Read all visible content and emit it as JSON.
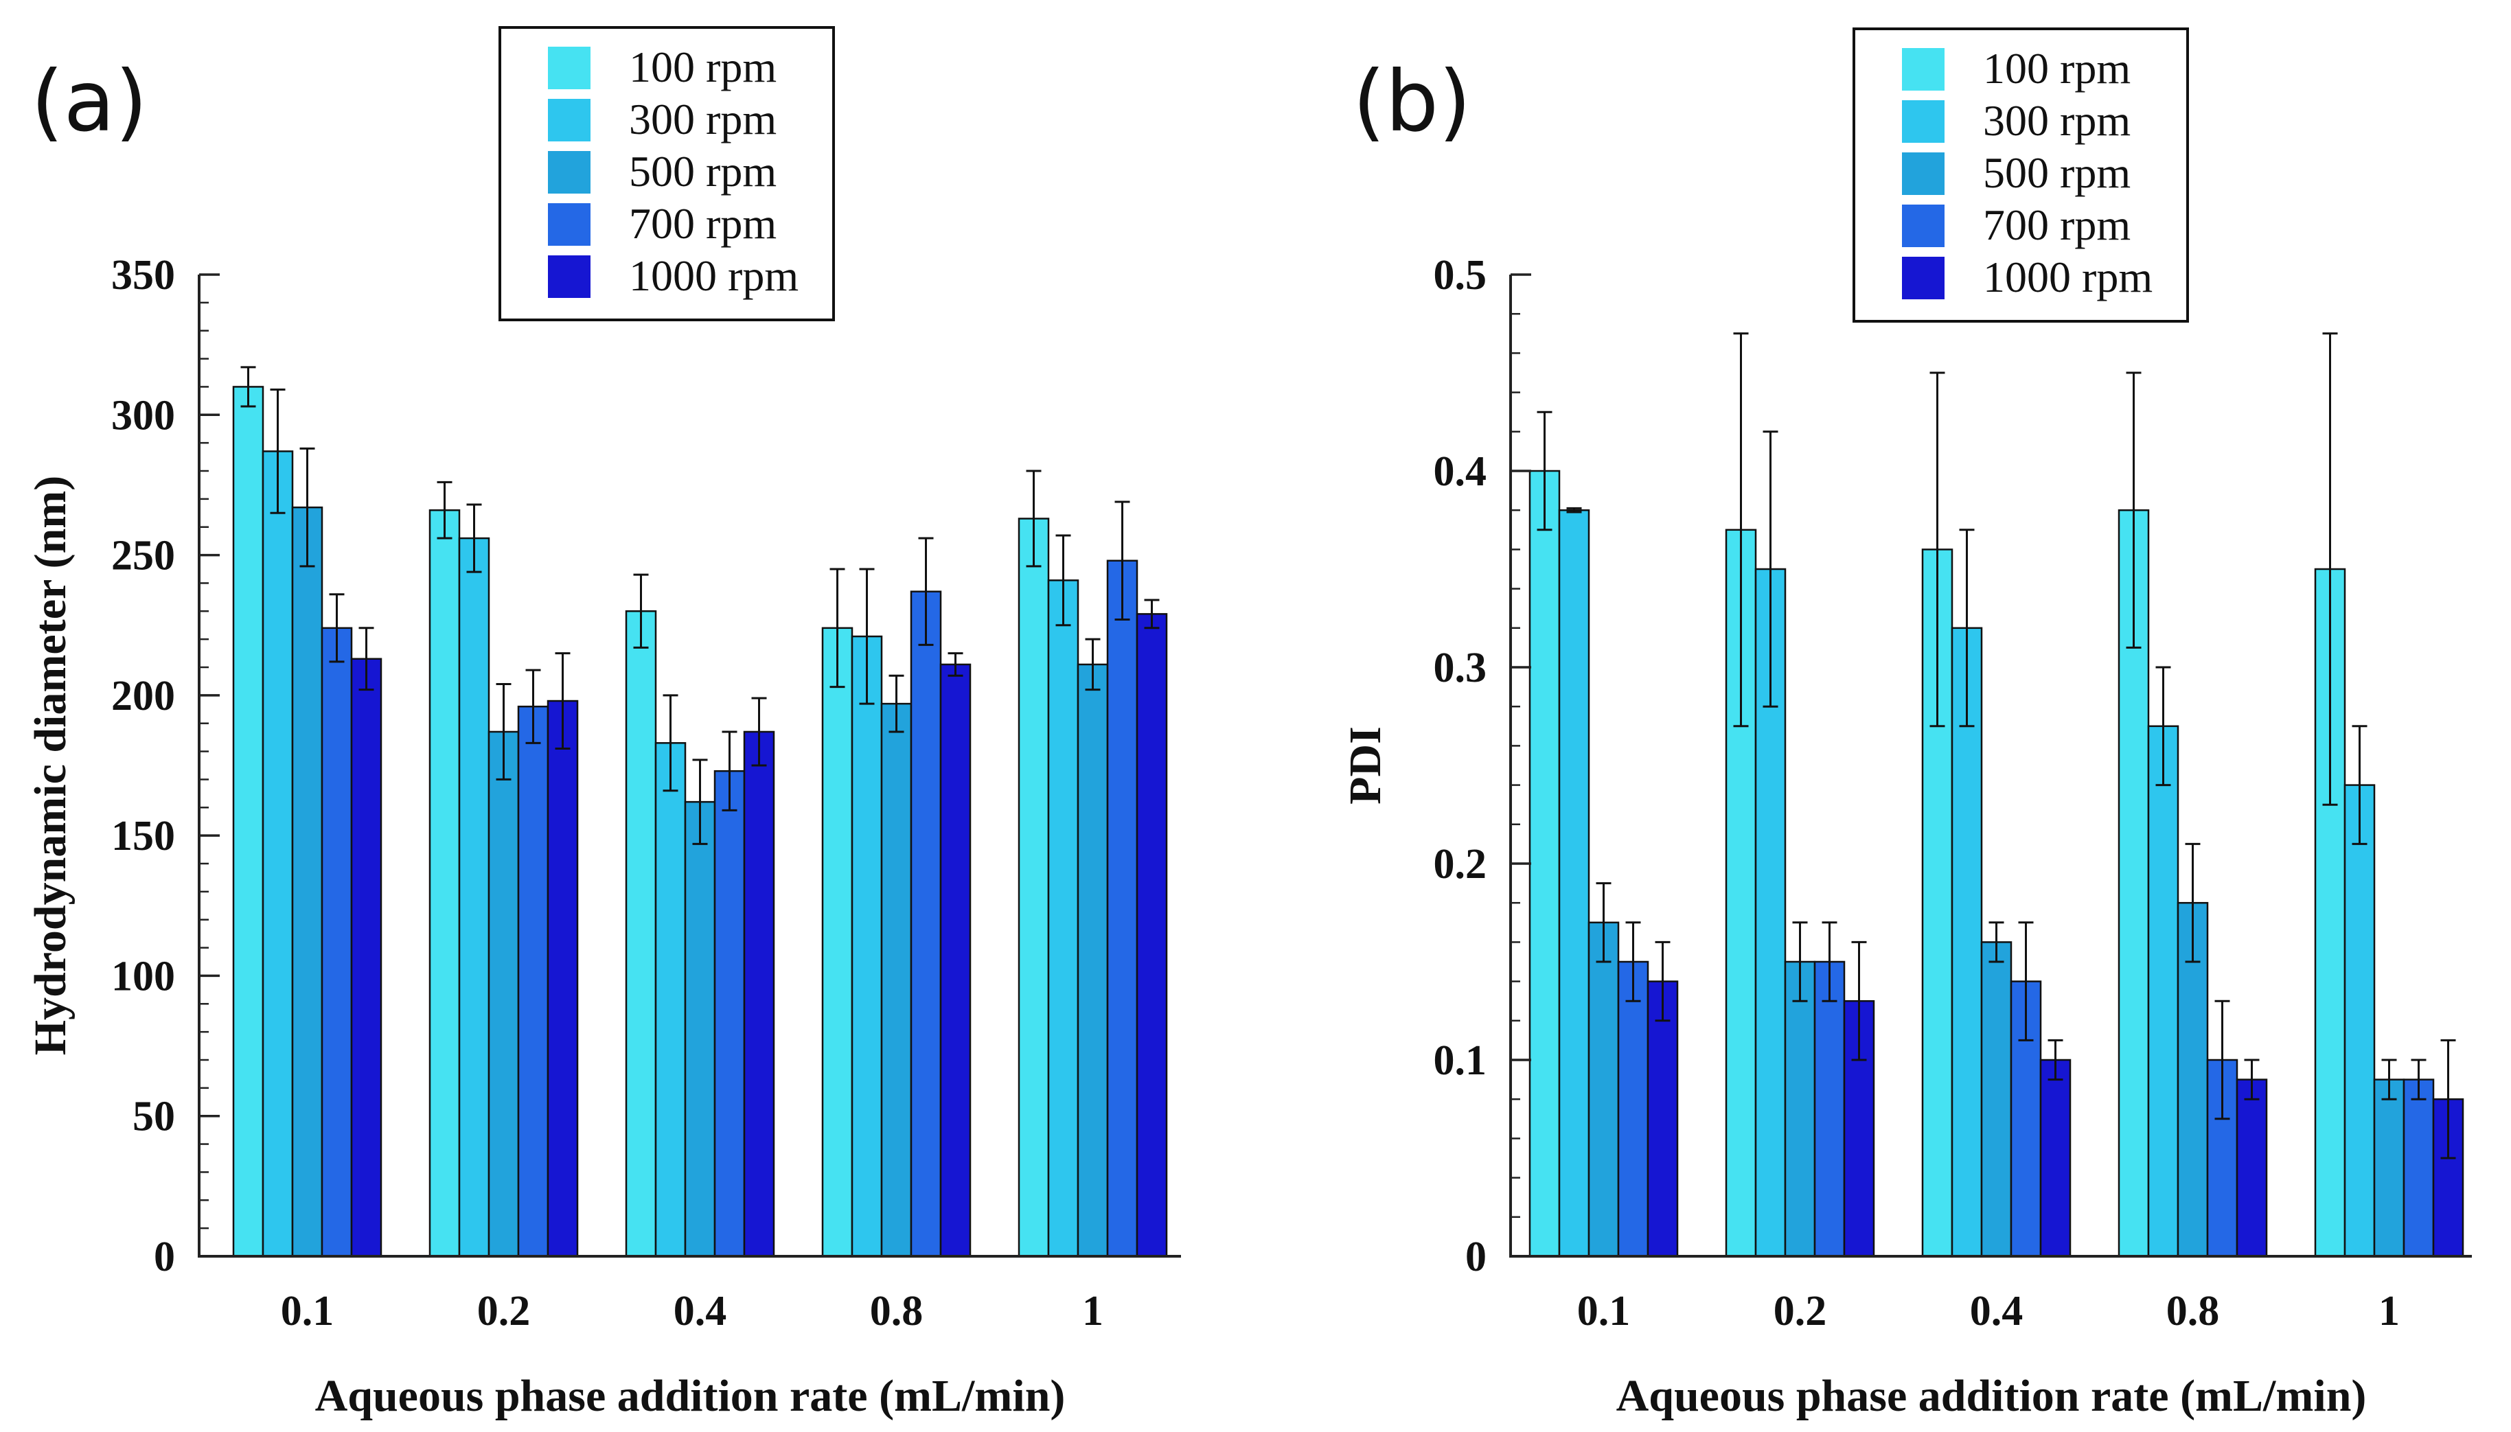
{
  "colors": {
    "series": [
      "#46e2f2",
      "#2ec6ee",
      "#22a3dc",
      "#2468e6",
      "#1616d2"
    ],
    "axis": "#222222",
    "errorbar": "#111111",
    "legend_border": "#111111"
  },
  "chart_data": [
    {
      "type": "bar",
      "panel_label": "(a)",
      "title": "",
      "xlabel": "Aqueous phase addition rate  (mL/min)",
      "ylabel": "Hydrodynamic diameter  (nm)",
      "ylim": [
        0,
        350
      ],
      "yticks": [
        0,
        50,
        100,
        150,
        200,
        250,
        300,
        350
      ],
      "ytick_labels": [
        "0",
        "50",
        "100",
        "150",
        "200",
        "250",
        "300",
        "350"
      ],
      "yminor_step": 10,
      "categories": [
        "0.1",
        "0.2",
        "0.4",
        "0.8",
        "1"
      ],
      "legend_position": "top-center",
      "series": [
        {
          "name": "100 rpm",
          "values": [
            310,
            266,
            230,
            224,
            263
          ],
          "errors": [
            7,
            10,
            13,
            21,
            17
          ]
        },
        {
          "name": "300 rpm",
          "values": [
            287,
            256,
            183,
            221,
            241
          ],
          "errors": [
            22,
            12,
            17,
            24,
            16
          ]
        },
        {
          "name": "500 rpm",
          "values": [
            267,
            187,
            162,
            197,
            211
          ],
          "errors": [
            21,
            17,
            15,
            10,
            9
          ]
        },
        {
          "name": "700 rpm",
          "values": [
            224,
            196,
            173,
            237,
            248
          ],
          "errors": [
            12,
            13,
            14,
            19,
            21
          ]
        },
        {
          "name": "1000 rpm",
          "values": [
            213,
            198,
            187,
            211,
            229
          ],
          "errors": [
            11,
            17,
            12,
            4,
            5
          ]
        }
      ],
      "grid": false
    },
    {
      "type": "bar",
      "panel_label": "(b)",
      "title": "",
      "xlabel": "Aqueous phase addition rate  (mL/min)",
      "ylabel": "PDI",
      "ylim": [
        0,
        0.5
      ],
      "yticks": [
        0,
        0.1,
        0.2,
        0.3,
        0.4,
        0.5
      ],
      "ytick_labels": [
        "0",
        "0.1",
        "0.2",
        "0.3",
        "0.4",
        "0.5"
      ],
      "yminor_step": 0.02,
      "categories": [
        "0.1",
        "0.2",
        "0.4",
        "0.8",
        "1"
      ],
      "legend_position": "top-right",
      "series": [
        {
          "name": "100 rpm",
          "values": [
            0.4,
            0.37,
            0.36,
            0.38,
            0.35
          ],
          "errors": [
            0.03,
            0.1,
            0.09,
            0.07,
            0.12
          ]
        },
        {
          "name": "300 rpm",
          "values": [
            0.38,
            0.35,
            0.32,
            0.27,
            0.24
          ],
          "errors": [
            0.001,
            0.07,
            0.05,
            0.03,
            0.03
          ]
        },
        {
          "name": "500 rpm",
          "values": [
            0.17,
            0.15,
            0.16,
            0.18,
            0.09
          ],
          "errors": [
            0.02,
            0.02,
            0.01,
            0.03,
            0.01
          ]
        },
        {
          "name": "700 rpm",
          "values": [
            0.15,
            0.15,
            0.14,
            0.1,
            0.09
          ],
          "errors": [
            0.02,
            0.02,
            0.03,
            0.03,
            0.01
          ]
        },
        {
          "name": "1000 rpm",
          "values": [
            0.14,
            0.13,
            0.1,
            0.09,
            0.08
          ],
          "errors": [
            0.02,
            0.03,
            0.01,
            0.01,
            0.03
          ]
        }
      ],
      "grid": false
    }
  ]
}
